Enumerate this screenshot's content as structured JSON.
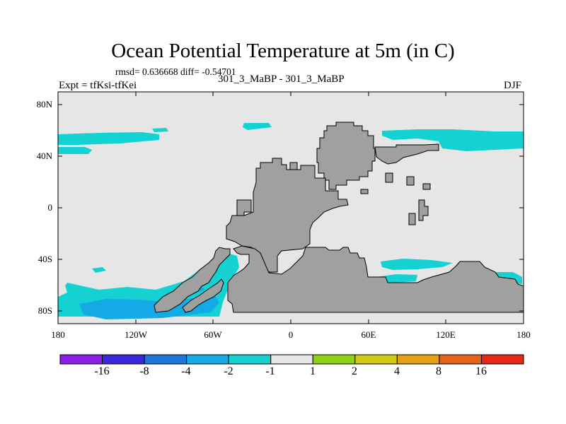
{
  "title": "Ocean Potential Temperature at 5m (in C)",
  "stats": "rmsd= 0.636668 diff= -0.54701",
  "subtitle_center": "301_3_MaBP - 301_3_MaBP",
  "subtitle_left": "Expt = tfKsi-tfKei",
  "subtitle_right": "DJF",
  "axes": {
    "lat_labels": [
      "80N",
      "40N",
      "0",
      "40S",
      "80S"
    ],
    "lon_labels": [
      "180",
      "120W",
      "60W",
      "0",
      "60E",
      "120E",
      "180"
    ]
  },
  "colorbar": {
    "labels": [
      "-16",
      "-8",
      "-4",
      "-2",
      "-1",
      "1",
      "2",
      "4",
      "8",
      "16"
    ],
    "colors": [
      "#8a1ee6",
      "#3c28dc",
      "#1e78dc",
      "#14aae6",
      "#14d2d2",
      "#e6e6e6",
      "#8cd214",
      "#d2c814",
      "#e6a014",
      "#e66414",
      "#e62814"
    ]
  },
  "colors": {
    "background_field": "#e6e6e6",
    "land": "#a0a0a0",
    "anomaly_neg1": "#14d2d2",
    "anomaly_neg2": "#14aae6"
  }
}
